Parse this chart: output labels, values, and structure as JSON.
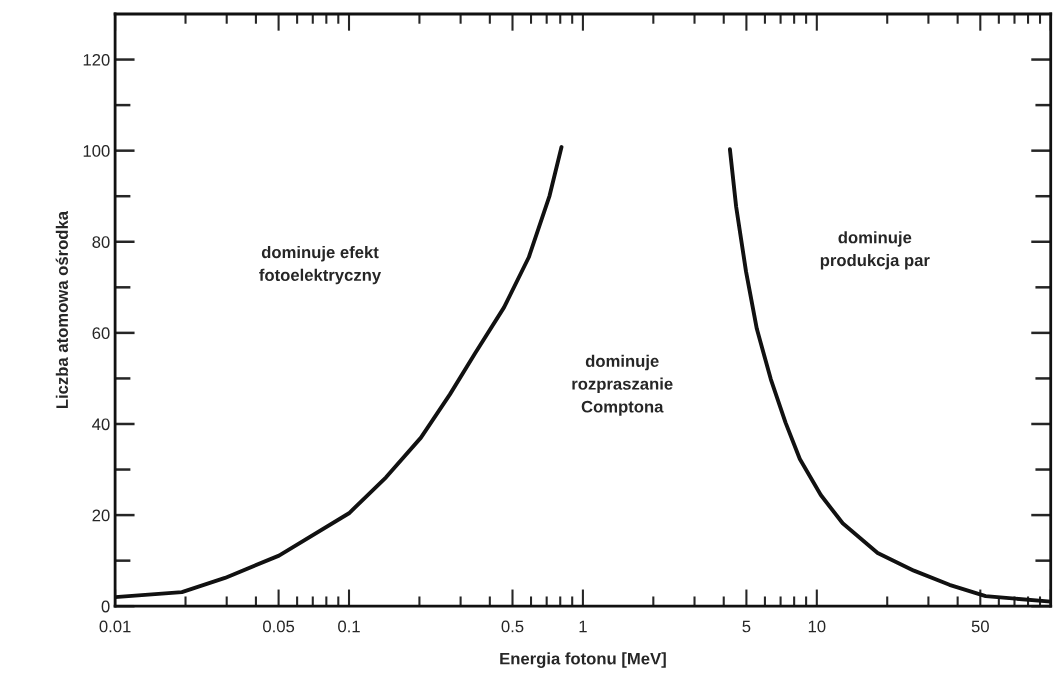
{
  "chart_data": {
    "type": "line",
    "xlabel": "Energia fotonu [MeV]",
    "ylabel": "Liczba atomowa ośrodka",
    "log": "x",
    "xlim": [
      0.01,
      100
    ],
    "ylim": [
      0,
      130
    ],
    "xticks": [
      0.01,
      0.05,
      0.1,
      0.5,
      1,
      5,
      10,
      50,
      {
        "value": 100,
        "label": null
      }
    ],
    "yticks": [
      0,
      {
        "value": 10,
        "label": null
      },
      20,
      {
        "value": 30,
        "label": null
      },
      40,
      {
        "value": 50,
        "label": null
      },
      60,
      {
        "value": 70,
        "label": null
      },
      80,
      {
        "value": 90,
        "label": null
      },
      100,
      {
        "value": 110,
        "label": null
      },
      120
    ],
    "grid": false,
    "legend": false,
    "marker": "none",
    "line_style": "solid",
    "series": [
      {
        "color": "#111111",
        "x": [
          0.01,
          0.0193,
          0.0295,
          0.0502,
          0.1,
          0.144,
          0.203,
          0.27,
          0.345,
          0.46,
          0.587,
          0.72,
          0.81
        ],
        "values": [
          2,
          3.1,
          6.2,
          11.1,
          20.4,
          28.3,
          37,
          46.5,
          55.4,
          65.6,
          76.6,
          90.1,
          100.8
        ]
      },
      {
        "color": "#111111",
        "x": [
          4.25,
          4.52,
          4.98,
          5.54,
          6.36,
          7.35,
          8.46,
          10.4,
          12.9,
          18.2,
          26,
          36.9,
          52.7,
          100
        ],
        "values": [
          100.3,
          87.7,
          73.5,
          60.9,
          49.8,
          40.3,
          32.3,
          24.4,
          18.2,
          11.7,
          7.8,
          4.7,
          2.2,
          1
        ]
      }
    ],
    "annotations": [
      "dominuje efekt\nfotoelektryczny",
      "dominuje\nrozpraszanie\nComptona",
      "dominuje\nprodukcja par"
    ]
  }
}
